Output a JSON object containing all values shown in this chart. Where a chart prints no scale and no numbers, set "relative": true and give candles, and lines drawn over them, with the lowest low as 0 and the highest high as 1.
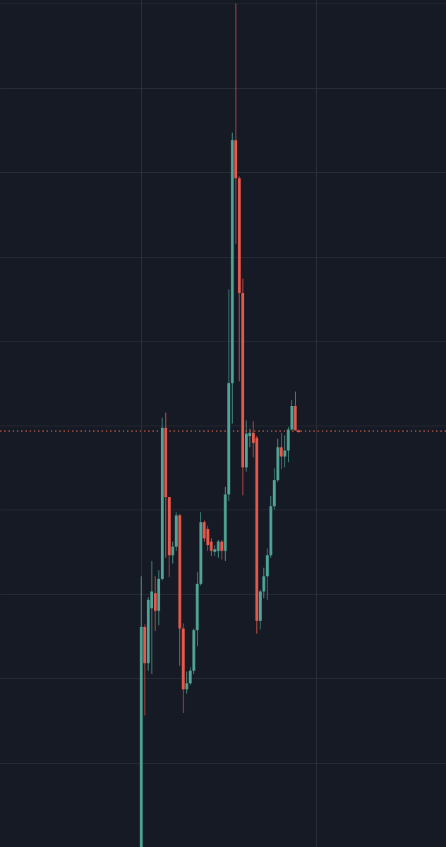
{
  "chart_data": {
    "type": "candlestick",
    "relative": true,
    "grid": true,
    "categories": [
      null,
      null,
      null,
      null,
      null,
      null,
      null,
      null,
      null,
      null,
      null,
      null,
      null,
      null,
      null,
      null,
      null,
      null,
      null,
      null,
      null,
      null,
      null,
      null,
      null,
      null,
      null,
      null,
      null,
      null,
      null,
      null,
      null,
      null,
      null,
      null,
      null,
      null,
      null,
      null,
      null,
      null,
      null,
      null,
      null,
      null
    ],
    "ohlc": [
      [
        0,
        0.321,
        0,
        0.261
      ],
      [
        0.261,
        0.264,
        0.156,
        0.218
      ],
      [
        0.218,
        0.296,
        0.209,
        0.293
      ],
      [
        0.283,
        0.339,
        0.205,
        0.303
      ],
      [
        0.301,
        0.321,
        0.256,
        0.28
      ],
      [
        0.28,
        0.328,
        0.263,
        0.318
      ],
      [
        0.318,
        0.509,
        0.316,
        0.497
      ],
      [
        0.497,
        0.515,
        0.343,
        0.415
      ],
      [
        0.415,
        0.415,
        0.32,
        0.346
      ],
      [
        0.346,
        0.362,
        0.336,
        0.356
      ],
      [
        0.356,
        0.397,
        0.351,
        0.393
      ],
      [
        0.393,
        0.395,
        0.215,
        0.259
      ],
      [
        0.259,
        0.265,
        0.159,
        0.187
      ],
      [
        0.187,
        0.208,
        0.182,
        0.194
      ],
      [
        0.194,
        0.213,
        0.192,
        0.209
      ],
      [
        0.209,
        0.259,
        0.205,
        0.257
      ],
      [
        0.257,
        0.326,
        0.238,
        0.312
      ],
      [
        0.312,
        0.397,
        0.31,
        0.385
      ],
      [
        0.385,
        0.387,
        0.362,
        0.366
      ],
      [
        0.377,
        0.381,
        0.351,
        0.358
      ],
      [
        0.362,
        0.366,
        0.345,
        0.351
      ],
      [
        0.35,
        0.358,
        0.345,
        0.353
      ],
      [
        0.351,
        0.364,
        0.343,
        0.362
      ],
      [
        0.362,
        0.364,
        0.341,
        0.351
      ],
      [
        0.351,
        0.427,
        0.339,
        0.418
      ],
      [
        0.418,
        0.661,
        0.41,
        0.55
      ],
      [
        0.55,
        0.847,
        0.502,
        0.838
      ],
      [
        0.838,
        1,
        0.715,
        0.793
      ],
      [
        0.793,
        0.795,
        0.552,
        0.657
      ],
      [
        0.657,
        0.674,
        0.417,
        0.45
      ],
      [
        0.45,
        0.506,
        0.445,
        0.49
      ],
      [
        0.487,
        0.496,
        0.474,
        0.491
      ],
      [
        0.491,
        0.505,
        0.462,
        0.479
      ],
      [
        0.485,
        0.487,
        0.253,
        0.268
      ],
      [
        0.268,
        0.305,
        0.258,
        0.303
      ],
      [
        0.303,
        0.331,
        0.295,
        0.321
      ],
      [
        0.321,
        0.354,
        0.293,
        0.346
      ],
      [
        0.346,
        0.416,
        0.343,
        0.404
      ],
      [
        0.404,
        0.449,
        0.4,
        0.435
      ],
      [
        0.435,
        0.484,
        0.433,
        0.474
      ],
      [
        0.474,
        0.491,
        0.448,
        0.463
      ],
      [
        0.463,
        0.488,
        0.45,
        0.47
      ],
      [
        0.47,
        0.498,
        0.456,
        0.495
      ],
      [
        0.495,
        0.53,
        0.494,
        0.523
      ],
      [
        0.523,
        0.54,
        0.494,
        0.494
      ],
      [
        0.494,
        0.495,
        0.491,
        0.492
      ]
    ],
    "colors": [
      "#4fa597",
      "#e8594c",
      "#4fa597",
      "#4fa597",
      "#e8594c",
      "#4fa597",
      "#4fa597",
      "#e8594c",
      "#e8594c",
      "#4fa597",
      "#4fa597",
      "#e8594c",
      "#e8594c",
      "#4fa597",
      "#4fa597",
      "#4fa597",
      "#4fa597",
      "#4fa597",
      "#e8594c",
      "#e8594c",
      "#e8594c",
      "#4fa597",
      "#4fa597",
      "#e8594c",
      "#4fa597",
      "#4fa597",
      "#4fa597",
      "#e8594c",
      "#e8594c",
      "#e8594c",
      "#4fa597",
      "#4fa597",
      "#e8594c",
      "#e8594c",
      "#4fa597",
      "#4fa597",
      "#4fa597",
      "#4fa597",
      "#4fa597",
      "#4fa597",
      "#e8594c",
      "#4fa597",
      "#4fa597",
      "#4fa597",
      "#e8594c",
      "#e8594c"
    ],
    "ref_lines": [
      {
        "axis": "y",
        "value": 0.493,
        "label": null,
        "color": "#e0694f",
        "line_style": "dotted"
      }
    ]
  }
}
